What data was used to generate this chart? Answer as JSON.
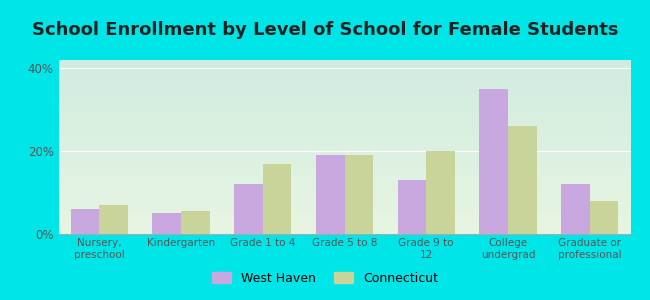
{
  "title": "School Enrollment by Level of School for Female Students",
  "categories": [
    "Nursery,\npreschool",
    "Kindergarten",
    "Grade 1 to 4",
    "Grade 5 to 8",
    "Grade 9 to\n12",
    "College\nundergrad",
    "Graduate or\nprofessional"
  ],
  "west_haven": [
    6.0,
    5.0,
    12.0,
    19.0,
    13.0,
    35.0,
    12.0
  ],
  "connecticut": [
    7.0,
    5.5,
    17.0,
    19.0,
    20.0,
    26.0,
    8.0
  ],
  "west_haven_color": "#c9a8e0",
  "connecticut_color": "#c8d49a",
  "plot_bg_bottom": "#e8f5e2",
  "plot_bg_top": "#d0ece0",
  "outer_background": "#00e5e8",
  "ylim": [
    0,
    42
  ],
  "yticks": [
    0,
    20,
    40
  ],
  "ytick_labels": [
    "0%",
    "20%",
    "40%"
  ],
  "legend_labels": [
    "West Haven",
    "Connecticut"
  ],
  "bar_width": 0.35,
  "title_fontsize": 13,
  "title_color": "#222222",
  "tick_color": "#555555"
}
